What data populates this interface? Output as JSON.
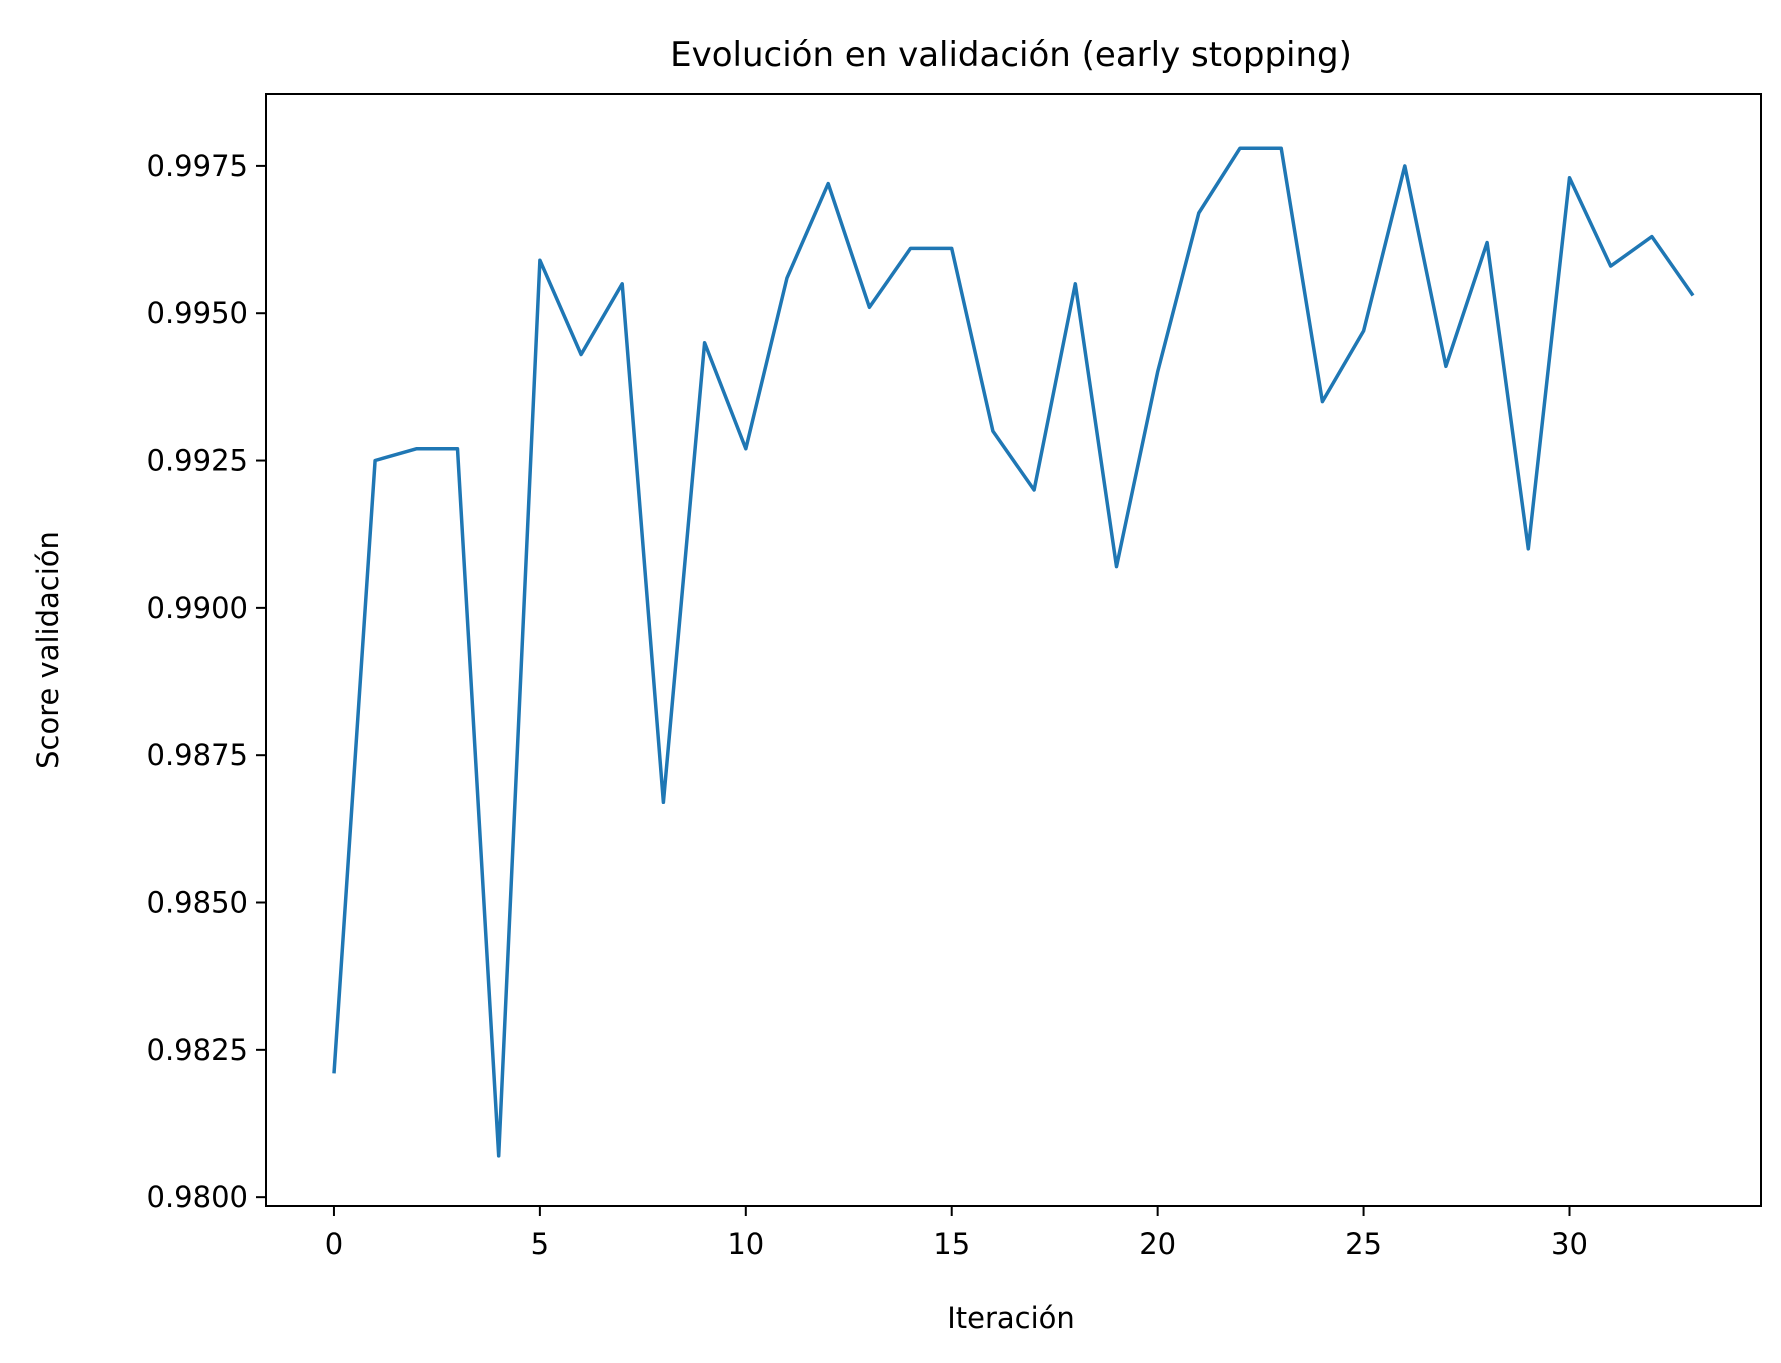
{
  "chart_data": {
    "type": "line",
    "title": "Evolución en validación (early stopping)",
    "xlabel": "Iteración",
    "ylabel": "Score validación",
    "xlim": [
      -1.65,
      34.65
    ],
    "ylim": [
      0.97985,
      0.99872
    ],
    "xticks": [
      0,
      5,
      10,
      15,
      20,
      25,
      30
    ],
    "xtick_labels": [
      "0",
      "5",
      "10",
      "15",
      "20",
      "25",
      "30"
    ],
    "yticks": [
      0.98,
      0.9825,
      0.985,
      0.9875,
      0.99,
      0.9925,
      0.995,
      0.9975
    ],
    "ytick_labels": [
      "0.9800",
      "0.9825",
      "0.9850",
      "0.9875",
      "0.9900",
      "0.9925",
      "0.9950",
      "0.9975"
    ],
    "grid": false,
    "series": [
      {
        "color": "#1f77b4",
        "x": [
          0,
          1,
          2,
          3,
          4,
          5,
          6,
          7,
          8,
          9,
          10,
          11,
          12,
          13,
          14,
          15,
          16,
          17,
          18,
          19,
          20,
          21,
          22,
          23,
          24,
          25,
          26,
          27,
          28,
          29,
          30,
          31,
          32,
          33
        ],
        "values": [
          0.9821,
          0.9925,
          0.9927,
          0.9927,
          0.9807,
          0.9959,
          0.9943,
          0.9955,
          0.9867,
          0.9945,
          0.9927,
          0.9956,
          0.9972,
          0.9951,
          0.9961,
          0.9961,
          0.993,
          0.992,
          0.9955,
          0.9907,
          0.994,
          0.9967,
          0.9978,
          0.9978,
          0.9935,
          0.9947,
          0.9975,
          0.9941,
          0.9962,
          0.991,
          0.9973,
          0.9958,
          0.9963,
          0.9953
        ]
      }
    ]
  }
}
